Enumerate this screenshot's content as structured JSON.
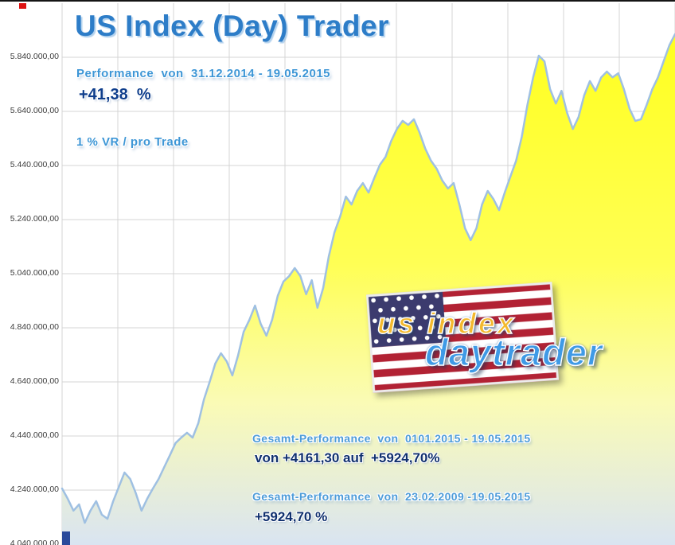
{
  "header": {
    "title": "US Index (Day) Trader"
  },
  "annotations": {
    "performance_label": "Performance  von  31.12.2014 - 19.05.2015",
    "performance_value": "+41,38  %",
    "risk_label": "1 % VR / pro Trade",
    "gesamt1_label": "Gesamt-Performance  von  0101.2015 - 19.05.2015",
    "gesamt1_value": "von +4161,30 auf  +5924,70%",
    "gesamt2_label": "Gesamt-Performance  von  23.02.2009 -19.05.2015",
    "gesamt2_value": "+5924,70 %"
  },
  "logo": {
    "line1": "us index",
    "line2": "daytrader",
    "flag_icon": "us-flag-icon",
    "colors": {
      "line1": "#f3b92e",
      "line2": "#3f9ae6"
    }
  },
  "chart_data": {
    "type": "area",
    "title": "US Index (Day) Trader",
    "xlabel": "",
    "ylabel": "",
    "grid": true,
    "v_grid_divisions": 11,
    "ylim": [
      4040000,
      6040000
    ],
    "yticks": [
      5840000,
      5640000,
      5440000,
      5240000,
      5040000,
      4840000,
      4640000,
      4440000,
      4240000,
      4040000
    ],
    "ytick_labels": [
      "5.840.000,00",
      "5.640.000,00",
      "5.440.000,00",
      "5.240.000,00",
      "5.040.000,00",
      "4.840.000,00",
      "4.640.000,00",
      "4.440.000,00",
      "4.240.000,00",
      "4.040.000,00"
    ],
    "line_color": "#9fc0e2",
    "grid_color": "#d4d4d4",
    "fill_gradient": [
      [
        "0%",
        "#ffff1f"
      ],
      [
        "45%",
        "#ffff55"
      ],
      [
        "72%",
        "#fafbb6"
      ],
      [
        "100%",
        "#d9e4f2"
      ]
    ],
    "values": [
      4246000,
      4208000,
      4164000,
      4187000,
      4119000,
      4164000,
      4199000,
      4149000,
      4134000,
      4199000,
      4252000,
      4305000,
      4281000,
      4228000,
      4164000,
      4208000,
      4246000,
      4281000,
      4325000,
      4369000,
      4414000,
      4434000,
      4452000,
      4434000,
      4487000,
      4575000,
      4640000,
      4708000,
      4746000,
      4716000,
      4664000,
      4737000,
      4825000,
      4869000,
      4922000,
      4855000,
      4811000,
      4869000,
      4958000,
      5011000,
      5031000,
      5061000,
      5031000,
      4964000,
      5016000,
      4914000,
      4987000,
      5105000,
      5193000,
      5252000,
      5325000,
      5296000,
      5346000,
      5375000,
      5340000,
      5393000,
      5443000,
      5472000,
      5531000,
      5575000,
      5605000,
      5590000,
      5611000,
      5561000,
      5502000,
      5458000,
      5428000,
      5384000,
      5355000,
      5375000,
      5296000,
      5208000,
      5164000,
      5208000,
      5296000,
      5346000,
      5316000,
      5275000,
      5340000,
      5399000,
      5458000,
      5546000,
      5664000,
      5766000,
      5846000,
      5825000,
      5722000,
      5669000,
      5716000,
      5634000,
      5575000,
      5619000,
      5699000,
      5752000,
      5716000,
      5766000,
      5787000,
      5766000,
      5781000,
      5722000,
      5649000,
      5605000,
      5611000,
      5664000,
      5722000,
      5766000,
      5825000,
      5884000,
      5925000
    ]
  }
}
